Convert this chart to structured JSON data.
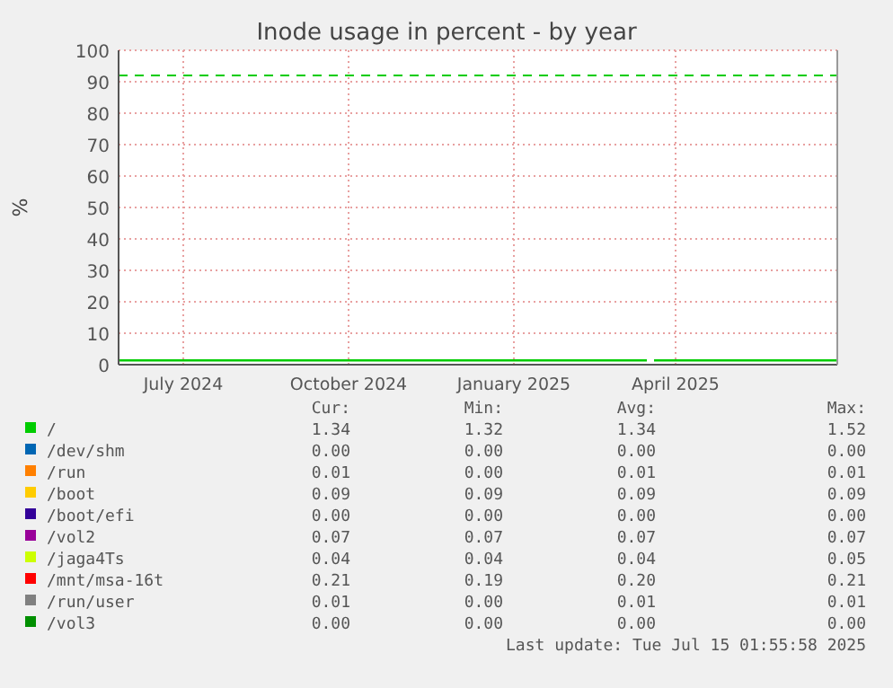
{
  "chart_data": {
    "type": "line",
    "title": "Inode usage in percent - by year",
    "ylabel": "%",
    "x": [
      "2024-06-10",
      "2024-08-01",
      "2024-10-01",
      "2024-12-01",
      "2025-02-01",
      "2025-03-31",
      "2025-04-02",
      "2025-04-04",
      "2025-06-01",
      "2025-07-15"
    ],
    "xlim": [
      "2024-06-10",
      "2025-07-15"
    ],
    "xticks": [
      {
        "value": "2024-07-16",
        "label": "July 2024"
      },
      {
        "value": "2024-10-16",
        "label": "October 2024"
      },
      {
        "value": "2025-01-16",
        "label": "January 2025"
      },
      {
        "value": "2025-04-16",
        "label": "April 2025"
      }
    ],
    "ylim": [
      0,
      100
    ],
    "yticks": [
      0,
      10,
      20,
      30,
      40,
      50,
      60,
      70,
      80,
      90,
      100
    ],
    "grid": true,
    "legend": "bottom",
    "line_style": "solid",
    "marker": "none",
    "ref_lines": [
      {
        "axis": "y",
        "value": 92,
        "color": "#00cc00",
        "line_style": "dashed"
      }
    ],
    "series": [
      {
        "name": "/",
        "color": "#00cc00",
        "values": [
          1.34,
          1.34,
          1.34,
          1.34,
          1.34,
          1.34,
          null,
          1.34,
          1.34,
          1.34
        ]
      },
      {
        "name": "/dev/shm",
        "color": "#0066b3",
        "values": [
          null,
          null,
          null,
          null,
          null,
          null,
          null,
          null,
          null,
          null
        ]
      },
      {
        "name": "/run",
        "color": "#ff8000",
        "values": [
          null,
          null,
          null,
          null,
          null,
          null,
          null,
          null,
          null,
          null
        ]
      },
      {
        "name": "/boot",
        "color": "#ffcc00",
        "values": [
          null,
          null,
          null,
          null,
          null,
          null,
          null,
          null,
          null,
          null
        ]
      },
      {
        "name": "/boot/efi",
        "color": "#330099",
        "values": [
          null,
          null,
          null,
          null,
          null,
          null,
          null,
          null,
          null,
          null
        ]
      },
      {
        "name": "/vol2",
        "color": "#990099",
        "values": [
          null,
          null,
          null,
          null,
          null,
          null,
          null,
          null,
          null,
          null
        ]
      },
      {
        "name": "/jaga4Ts",
        "color": "#ccff00",
        "values": [
          null,
          null,
          null,
          null,
          null,
          null,
          null,
          null,
          null,
          null
        ]
      },
      {
        "name": "/mnt/msa-16t",
        "color": "#ff0000",
        "values": [
          null,
          null,
          null,
          null,
          null,
          null,
          null,
          null,
          null,
          null
        ]
      },
      {
        "name": "/run/user",
        "color": "#808080",
        "values": [
          null,
          null,
          null,
          null,
          null,
          null,
          null,
          null,
          null,
          null
        ]
      },
      {
        "name": "/vol3",
        "color": "#008f00",
        "values": [
          null,
          null,
          null,
          null,
          null,
          null,
          null,
          null,
          null,
          null
        ]
      }
    ],
    "annotations": [
      "Cur:",
      "Min:",
      "Avg:",
      "Max:",
      "1.34",
      "1.32",
      "1.34",
      "1.52",
      "0.00",
      "0.00",
      "0.00",
      "0.00",
      "0.01",
      "0.00",
      "0.01",
      "0.01",
      "0.09",
      "0.09",
      "0.09",
      "0.09",
      "0.00",
      "0.00",
      "0.00",
      "0.00",
      "0.07",
      "0.07",
      "0.07",
      "0.07",
      "0.04",
      "0.04",
      "0.04",
      "0.05",
      "0.21",
      "0.19",
      "0.20",
      "0.21",
      "0.01",
      "0.00",
      "0.01",
      "0.01",
      "0.00",
      "0.00",
      "0.00",
      "0.00",
      "Last update: Tue Jul 15 01:55:58 2025"
    ]
  }
}
